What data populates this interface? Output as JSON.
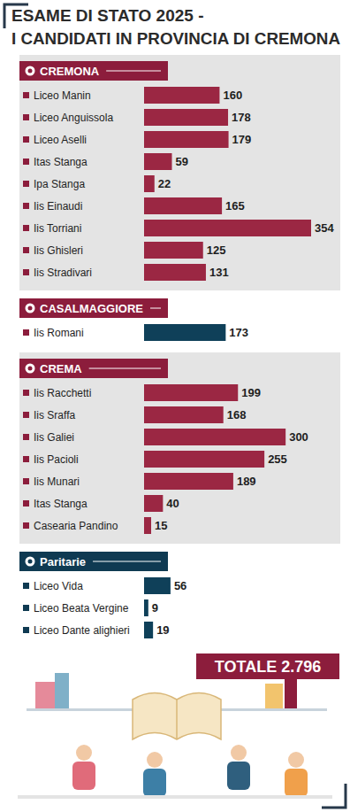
{
  "title": [
    "ESAME DI STATO 2025 -",
    "I CANDIDATI IN PROVINCIA DI CREMONA"
  ],
  "chart_data": [
    {
      "type": "bar",
      "orientation": "horizontal",
      "title": "CREMONA",
      "categories": [
        "Liceo Manin",
        "Liceo Anguissola",
        "Liceo Aselli",
        "Itas Stanga",
        "Ipa Stanga",
        "Iis Einaudi",
        "Iis Torriani",
        "Iis Ghisleri",
        "Iis Stradivari"
      ],
      "values": [
        160,
        178,
        179,
        59,
        22,
        165,
        354,
        125,
        131
      ],
      "color": "#9b2743",
      "xlim": [
        0,
        354
      ],
      "data_labels": true,
      "tick_labels": "y"
    },
    {
      "type": "bar",
      "orientation": "horizontal",
      "title": "CASALMAGGIORE",
      "categories": [
        "Iis Romani"
      ],
      "values": [
        173
      ],
      "color": "#0f4059",
      "xlim": [
        0,
        354
      ],
      "data_labels": true,
      "tick_labels": "y"
    },
    {
      "type": "bar",
      "orientation": "horizontal",
      "title": "CREMA",
      "categories": [
        "Iis Racchetti",
        "Iis Sraffa",
        "Iis Galiei",
        "Iis Pacioli",
        "Iis Munari",
        "Itas Stanga",
        "Casearia Pandino"
      ],
      "values": [
        199,
        168,
        300,
        255,
        189,
        40,
        15
      ],
      "color": "#9b2743",
      "xlim": [
        0,
        354
      ],
      "data_labels": true,
      "tick_labels": "y"
    },
    {
      "type": "bar",
      "orientation": "horizontal",
      "title": "Paritarie",
      "categories": [
        "Liceo Vida",
        "Liceo Beata Vergine",
        "Liceo Dante alighieri"
      ],
      "values": [
        56,
        9,
        19
      ],
      "color": "#0f4059",
      "xlim": [
        0,
        354
      ],
      "data_labels": true,
      "tick_labels": "y",
      "annotation": "TOTALE 2.796"
    }
  ]
}
